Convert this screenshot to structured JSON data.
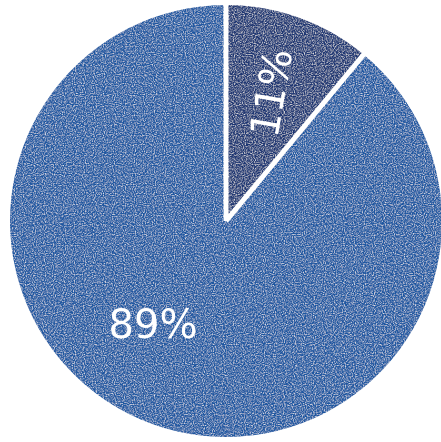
{
  "chart_data": {
    "type": "pie",
    "title": "",
    "slices": [
      {
        "label": "11%",
        "value": 11,
        "color": "#1f3472"
      },
      {
        "label": "89%",
        "value": 89,
        "color": "#1f56a0"
      }
    ],
    "start_angle_deg": 0,
    "direction": "clockwise",
    "separator_color": "#ffffff",
    "texture": "distressed"
  }
}
